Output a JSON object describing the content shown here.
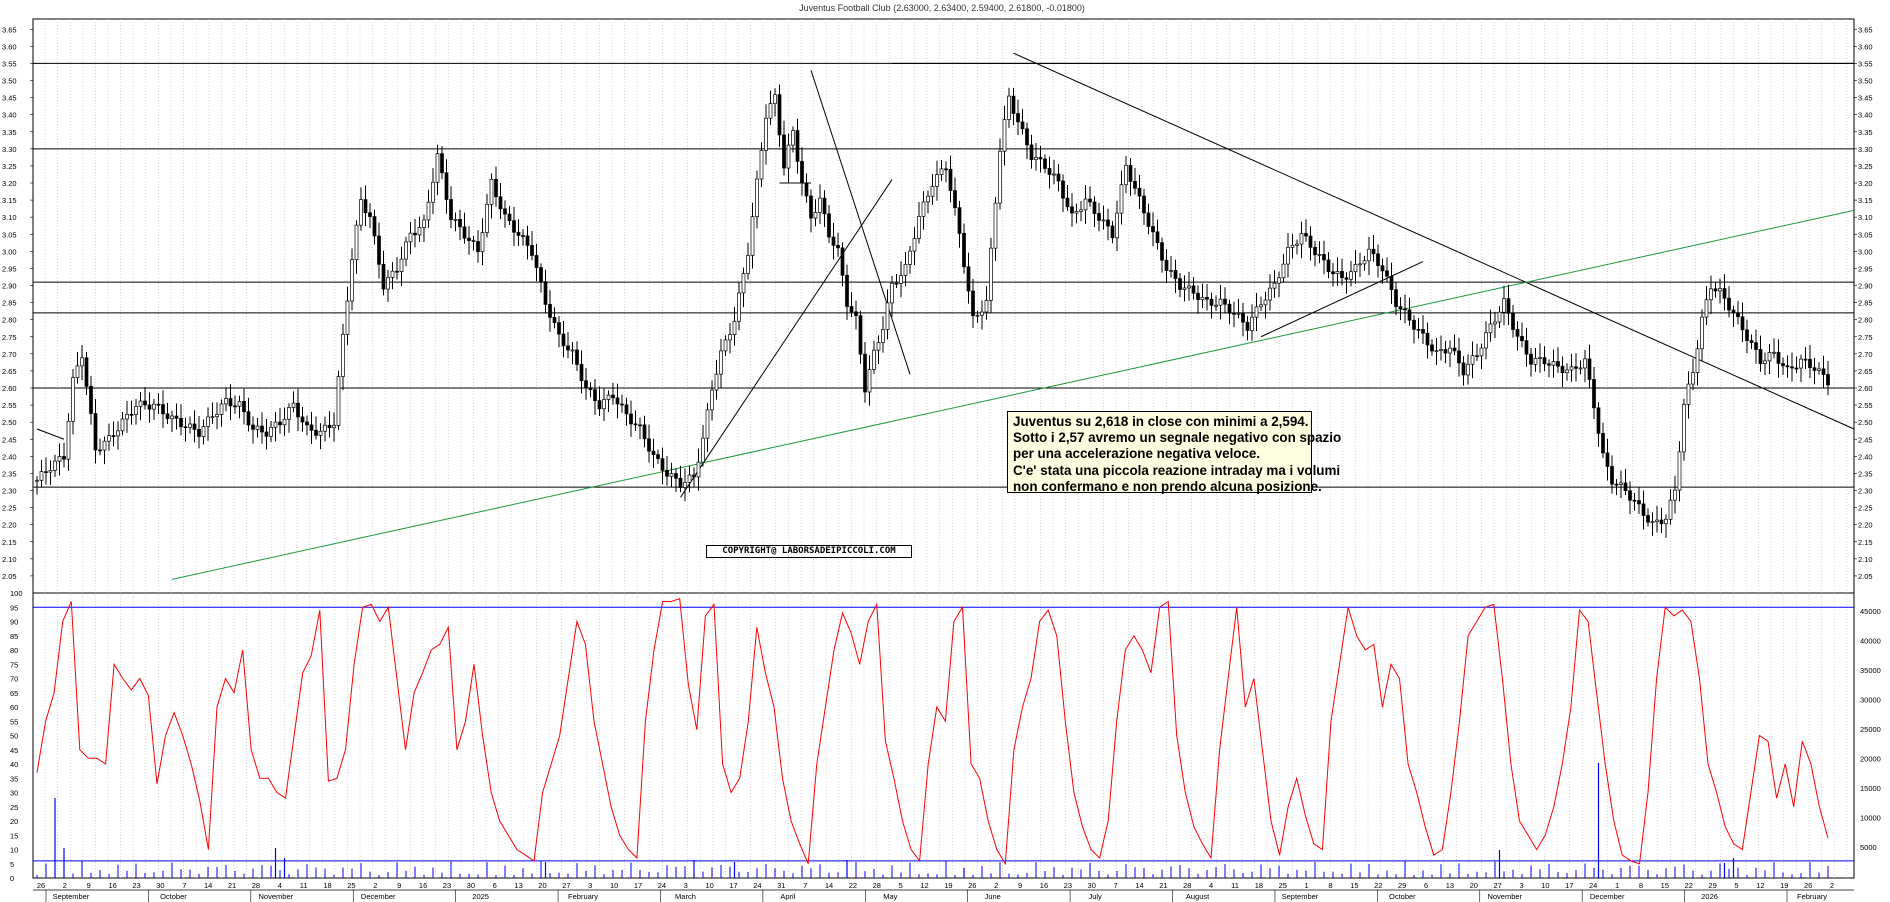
{
  "title": "Juventus Football Club (2.63000, 2.63400, 2.59400, 2.61800, -0.01800)",
  "copyright": "COPYRIGHT@ LABORSADEIPICCOLI.COM",
  "note_lines": [
    "Juventus su 2,618 in close con minimi a 2,594.",
    "Sotto i 2,57 avremo un segnale negativo con spazio",
    "per una accelerazione negativa veloce.",
    "C'e' stata una piccola reazione intraday ma i volumi",
    "non confermano e non prendo alcuna posizione."
  ],
  "chart_data": {
    "type": "ohlc",
    "symbol": "Juventus Football Club",
    "last": {
      "open": 2.63,
      "high": 2.634,
      "low": 2.594,
      "close": 2.618,
      "change": -0.018
    },
    "price_ylim": [
      2.0,
      3.68
    ],
    "price_ticks": [
      "3.65",
      "3.60",
      "3.55",
      "3.50",
      "3.45",
      "3.40",
      "3.35",
      "3.30",
      "3.25",
      "3.20",
      "3.15",
      "3.10",
      "3.05",
      "3.00",
      "2.95",
      "2.90",
      "2.85",
      "2.80",
      "2.75",
      "2.70",
      "2.65",
      "2.60",
      "2.55",
      "2.50",
      "2.45",
      "2.40",
      "2.35",
      "2.30",
      "2.25",
      "2.20",
      "2.15",
      "2.10",
      "2.05"
    ],
    "horizontal_levels": [
      3.55,
      3.3,
      2.91,
      2.82,
      2.6,
      2.31
    ],
    "close_path": [
      [
        0,
        2.33
      ],
      [
        3,
        2.37
      ],
      [
        6,
        2.4
      ],
      [
        8,
        2.62
      ],
      [
        10,
        2.7
      ],
      [
        13,
        2.42
      ],
      [
        16,
        2.45
      ],
      [
        19,
        2.5
      ],
      [
        22,
        2.55
      ],
      [
        26,
        2.55
      ],
      [
        30,
        2.51
      ],
      [
        33,
        2.49
      ],
      [
        36,
        2.47
      ],
      [
        39,
        2.52
      ],
      [
        42,
        2.56
      ],
      [
        45,
        2.55
      ],
      [
        48,
        2.48
      ],
      [
        51,
        2.47
      ],
      [
        54,
        2.5
      ],
      [
        57,
        2.55
      ],
      [
        60,
        2.48
      ],
      [
        63,
        2.47
      ],
      [
        66,
        2.5
      ],
      [
        68,
        2.75
      ],
      [
        70,
        2.98
      ],
      [
        72,
        3.15
      ],
      [
        74,
        3.1
      ],
      [
        77,
        2.9
      ],
      [
        80,
        2.95
      ],
      [
        83,
        3.05
      ],
      [
        86,
        3.08
      ],
      [
        89,
        3.28
      ],
      [
        92,
        3.1
      ],
      [
        95,
        3.05
      ],
      [
        98,
        3.0
      ],
      [
        101,
        3.2
      ],
      [
        104,
        3.1
      ],
      [
        107,
        3.05
      ],
      [
        110,
        3.0
      ],
      [
        113,
        2.85
      ],
      [
        116,
        2.75
      ],
      [
        119,
        2.7
      ],
      [
        122,
        2.6
      ],
      [
        125,
        2.55
      ],
      [
        128,
        2.58
      ],
      [
        131,
        2.52
      ],
      [
        134,
        2.48
      ],
      [
        137,
        2.4
      ],
      [
        140,
        2.35
      ],
      [
        143,
        2.32
      ],
      [
        146,
        2.34
      ],
      [
        148,
        2.45
      ],
      [
        150,
        2.6
      ],
      [
        152,
        2.7
      ],
      [
        155,
        2.8
      ],
      [
        158,
        3.0
      ],
      [
        160,
        3.2
      ],
      [
        162,
        3.4
      ],
      [
        164,
        3.45
      ],
      [
        166,
        3.25
      ],
      [
        168,
        3.35
      ],
      [
        170,
        3.2
      ],
      [
        172,
        3.1
      ],
      [
        174,
        3.15
      ],
      [
        176,
        3.05
      ],
      [
        178,
        3.0
      ],
      [
        180,
        2.85
      ],
      [
        182,
        2.8
      ],
      [
        184,
        2.6
      ],
      [
        186,
        2.7
      ],
      [
        188,
        2.78
      ],
      [
        190,
        2.9
      ],
      [
        193,
        2.95
      ],
      [
        196,
        3.1
      ],
      [
        199,
        3.2
      ],
      [
        202,
        3.25
      ],
      [
        205,
        3.05
      ],
      [
        208,
        2.8
      ],
      [
        211,
        2.85
      ],
      [
        214,
        3.3
      ],
      [
        216,
        3.45
      ],
      [
        218,
        3.38
      ],
      [
        221,
        3.28
      ],
      [
        224,
        3.25
      ],
      [
        227,
        3.2
      ],
      [
        230,
        3.1
      ],
      [
        233,
        3.15
      ],
      [
        236,
        3.1
      ],
      [
        239,
        3.05
      ],
      [
        242,
        3.25
      ],
      [
        245,
        3.15
      ],
      [
        248,
        3.05
      ],
      [
        251,
        2.95
      ],
      [
        254,
        2.9
      ],
      [
        257,
        2.88
      ],
      [
        260,
        2.85
      ],
      [
        263,
        2.85
      ],
      [
        266,
        2.82
      ],
      [
        269,
        2.78
      ],
      [
        272,
        2.85
      ],
      [
        275,
        2.9
      ],
      [
        278,
        3.0
      ],
      [
        281,
        3.05
      ],
      [
        284,
        3.0
      ],
      [
        287,
        2.95
      ],
      [
        290,
        2.92
      ],
      [
        293,
        2.95
      ],
      [
        296,
        3.0
      ],
      [
        299,
        2.95
      ],
      [
        302,
        2.85
      ],
      [
        305,
        2.8
      ],
      [
        308,
        2.75
      ],
      [
        311,
        2.7
      ],
      [
        314,
        2.72
      ],
      [
        317,
        2.65
      ],
      [
        320,
        2.7
      ],
      [
        323,
        2.78
      ],
      [
        326,
        2.85
      ],
      [
        329,
        2.75
      ],
      [
        332,
        2.68
      ],
      [
        335,
        2.68
      ],
      [
        338,
        2.66
      ],
      [
        341,
        2.65
      ],
      [
        344,
        2.68
      ],
      [
        346,
        2.55
      ],
      [
        348,
        2.4
      ],
      [
        350,
        2.33
      ],
      [
        353,
        2.3
      ],
      [
        356,
        2.25
      ],
      [
        359,
        2.2
      ],
      [
        362,
        2.22
      ],
      [
        364,
        2.3
      ],
      [
        366,
        2.55
      ],
      [
        368,
        2.65
      ],
      [
        370,
        2.8
      ],
      [
        372,
        2.9
      ],
      [
        374,
        2.88
      ],
      [
        377,
        2.82
      ],
      [
        380,
        2.75
      ],
      [
        383,
        2.68
      ],
      [
        386,
        2.7
      ],
      [
        389,
        2.65
      ],
      [
        392,
        2.68
      ],
      [
        395,
        2.66
      ],
      [
        398,
        2.62
      ]
    ],
    "oscillator": {
      "ylim": [
        0,
        100
      ],
      "ticks": [
        "100",
        "95",
        "90",
        "85",
        "80",
        "75",
        "70",
        "65",
        "60",
        "55",
        "50",
        "45",
        "40",
        "35",
        "30",
        "25",
        "20",
        "15",
        "10",
        "5",
        "0"
      ],
      "levels": [
        95,
        6
      ],
      "values": [
        37,
        55,
        65,
        90,
        97,
        45,
        42,
        42,
        40,
        75,
        70,
        66,
        70,
        64,
        33,
        50,
        58,
        50,
        40,
        27,
        10,
        60,
        70,
        65,
        80,
        45,
        35,
        35,
        30,
        28,
        50,
        72,
        78,
        94,
        34,
        35,
        45,
        75,
        95,
        96,
        90,
        95,
        70,
        45,
        65,
        72,
        80,
        82,
        88,
        45,
        55,
        75,
        50,
        30,
        20,
        15,
        10,
        8,
        6,
        30,
        40,
        50,
        70,
        90,
        82,
        55,
        40,
        25,
        15,
        10,
        7,
        55,
        80,
        97,
        97,
        98,
        68,
        52,
        92,
        96,
        40,
        30,
        35,
        55,
        88,
        72,
        60,
        35,
        20,
        12,
        5,
        40,
        60,
        80,
        93,
        86,
        75,
        90,
        96,
        48,
        35,
        20,
        10,
        6,
        40,
        60,
        55,
        90,
        95,
        40,
        35,
        20,
        10,
        5,
        45,
        60,
        70,
        90,
        94,
        85,
        55,
        30,
        18,
        10,
        7,
        20,
        55,
        80,
        85,
        80,
        72,
        95,
        97,
        50,
        30,
        18,
        12,
        7,
        45,
        70,
        95,
        60,
        70,
        45,
        20,
        8,
        25,
        35,
        22,
        12,
        10,
        55,
        75,
        95,
        85,
        80,
        82,
        60,
        75,
        70,
        40,
        30,
        18,
        8,
        10,
        30,
        55,
        85,
        90,
        95,
        96,
        70,
        40,
        20,
        15,
        10,
        15,
        25,
        40,
        60,
        94,
        90,
        65,
        40,
        20,
        8,
        6,
        5,
        30,
        70,
        95,
        92,
        94,
        90,
        70,
        40,
        30,
        18,
        12,
        10,
        30,
        50,
        48,
        28,
        40,
        25,
        48,
        40,
        25,
        14
      ],
      "volume_ticks": [
        "45000",
        "40000",
        "35000",
        "30000",
        "25000",
        "20000",
        "15000",
        "10000",
        "5000"
      ]
    },
    "x_tick_labels": [
      "26",
      "2",
      "9",
      "16",
      "23",
      "30",
      "7",
      "14",
      "21",
      "28",
      "4",
      "11",
      "18",
      "25",
      "2",
      "9",
      "16",
      "23",
      "30",
      "6",
      "13",
      "20",
      "27",
      "3",
      "10",
      "17",
      "24",
      "3",
      "10",
      "17",
      "24",
      "31",
      "7",
      "14",
      "22",
      "28",
      "5",
      "12",
      "19",
      "26",
      "2",
      "9",
      "16",
      "23",
      "30",
      "7",
      "14",
      "21",
      "28",
      "4",
      "11",
      "18",
      "25",
      "1",
      "8",
      "15",
      "22",
      "29",
      "6",
      "13",
      "20",
      "27",
      "3",
      "10",
      "17",
      "24",
      "1",
      "8",
      "15",
      "22",
      "29",
      "5",
      "12",
      "19",
      "26",
      "2"
    ],
    "x_month_labels": [
      "September",
      "October",
      "November",
      "December",
      "2025",
      "February",
      "March",
      "April",
      "May",
      "June",
      "July",
      "August",
      "September",
      "October",
      "November",
      "December",
      "2026",
      "February"
    ]
  }
}
